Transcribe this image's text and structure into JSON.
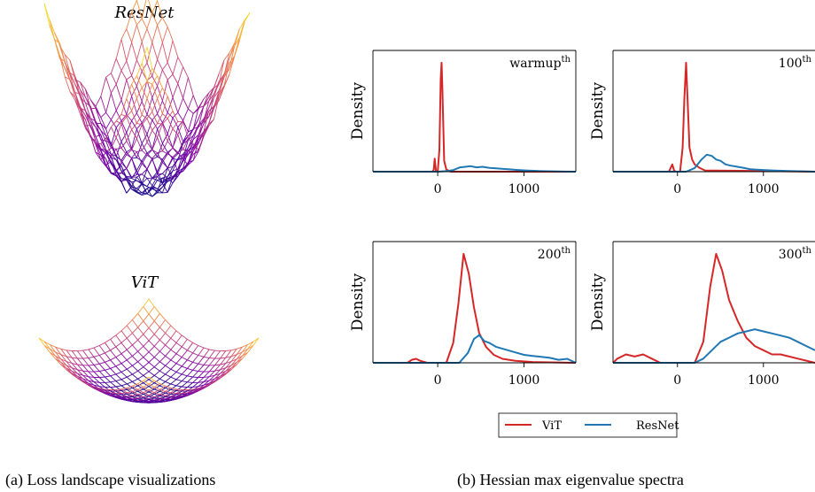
{
  "captions": {
    "a": "(a) Loss landscape visualizations",
    "b": "(b) Hessian max eigenvalue spectra"
  },
  "landscape_titles": [
    "ResNet",
    "ViT"
  ],
  "chart_data": [
    {
      "type": "line",
      "annotation": "warmup",
      "annotation_sup": "th",
      "ylabel": "Density",
      "xlim": [
        -750,
        1600
      ],
      "xticks": [
        "0",
        "1000"
      ],
      "series": [
        {
          "name": "ViT",
          "color": "#d62728",
          "x": [
            -750,
            -60,
            -45,
            -35,
            -20,
            0,
            20,
            35,
            45,
            55,
            75,
            100,
            150,
            1600
          ],
          "y": [
            0,
            0,
            0.02,
            0.12,
            0.01,
            0,
            0.2,
            0.85,
            1.0,
            0.75,
            0.1,
            0.02,
            0,
            0
          ]
        },
        {
          "name": "ResNet",
          "color": "#1f77b4",
          "x": [
            -750,
            0,
            100,
            180,
            260,
            320,
            380,
            450,
            520,
            600,
            680,
            760,
            850,
            950,
            1050,
            1200,
            1400,
            1600
          ],
          "y": [
            0,
            0,
            0.005,
            0.015,
            0.04,
            0.045,
            0.05,
            0.04,
            0.045,
            0.035,
            0.03,
            0.025,
            0.02,
            0.015,
            0.01,
            0.005,
            0.002,
            0
          ]
        }
      ]
    },
    {
      "type": "line",
      "annotation": "100",
      "annotation_sup": "th",
      "ylabel": "Density",
      "xlim": [
        -750,
        1600
      ],
      "xticks": [
        "0",
        "1000"
      ],
      "series": [
        {
          "name": "ViT",
          "color": "#d62728",
          "x": [
            -750,
            -100,
            -60,
            -40,
            -20,
            30,
            60,
            80,
            100,
            120,
            140,
            170,
            200,
            260,
            320,
            1000,
            1600
          ],
          "y": [
            0,
            0,
            0.06,
            0.01,
            0,
            0,
            0.2,
            0.6,
            0.9,
            0.55,
            0.2,
            0.1,
            0.06,
            0.03,
            0.01,
            0.005,
            0
          ]
        },
        {
          "name": "ResNet",
          "color": "#1f77b4",
          "x": [
            -750,
            100,
            200,
            280,
            340,
            400,
            450,
            500,
            560,
            620,
            700,
            780,
            850,
            950,
            1100,
            1300,
            1600
          ],
          "y": [
            0,
            0,
            0.03,
            0.1,
            0.14,
            0.13,
            0.1,
            0.09,
            0.06,
            0.05,
            0.04,
            0.03,
            0.02,
            0.015,
            0.01,
            0.005,
            0
          ]
        }
      ]
    },
    {
      "type": "line",
      "annotation": "200",
      "annotation_sup": "th",
      "ylabel": "Density",
      "xlim": [
        -750,
        1600
      ],
      "xticks": [
        "0",
        "1000"
      ],
      "series": [
        {
          "name": "ViT",
          "color": "#d62728",
          "x": [
            -750,
            -350,
            -300,
            -250,
            -200,
            -120,
            100,
            180,
            240,
            300,
            360,
            420,
            480,
            560,
            650,
            750,
            900,
            1100,
            1600
          ],
          "y": [
            0,
            0,
            0.015,
            0.02,
            0.01,
            0,
            0,
            0.1,
            0.3,
            0.55,
            0.45,
            0.28,
            0.15,
            0.08,
            0.04,
            0.02,
            0.01,
            0.004,
            0
          ]
        },
        {
          "name": "ResNet",
          "color": "#1f77b4",
          "x": [
            -750,
            250,
            350,
            420,
            480,
            540,
            600,
            680,
            760,
            840,
            920,
            1000,
            1100,
            1200,
            1300,
            1400,
            1500,
            1600
          ],
          "y": [
            0,
            0,
            0.05,
            0.12,
            0.14,
            0.11,
            0.1,
            0.08,
            0.07,
            0.06,
            0.05,
            0.04,
            0.035,
            0.03,
            0.025,
            0.015,
            0.02,
            0
          ]
        }
      ]
    },
    {
      "type": "line",
      "annotation": "300",
      "annotation_sup": "th",
      "ylabel": "Density",
      "xlim": [
        -750,
        1600
      ],
      "xticks": [
        "0",
        "1000"
      ],
      "series": [
        {
          "name": "ViT",
          "color": "#d62728",
          "x": [
            -750,
            -700,
            -600,
            -500,
            -400,
            -300,
            -200,
            200,
            300,
            380,
            450,
            520,
            600,
            700,
            800,
            900,
            1000,
            1100,
            1200,
            1300,
            1400,
            1500,
            1600
          ],
          "y": [
            0,
            0.01,
            0.02,
            0.015,
            0.02,
            0.01,
            0,
            0,
            0.05,
            0.18,
            0.26,
            0.22,
            0.15,
            0.1,
            0.06,
            0.04,
            0.03,
            0.02,
            0.02,
            0.015,
            0.01,
            0.005,
            0
          ]
        },
        {
          "name": "ResNet",
          "color": "#1f77b4",
          "x": [
            -750,
            200,
            300,
            400,
            500,
            600,
            700,
            800,
            900,
            1000,
            1100,
            1200,
            1300,
            1400,
            1500,
            1600
          ],
          "y": [
            0,
            0,
            0.01,
            0.03,
            0.05,
            0.06,
            0.07,
            0.075,
            0.08,
            0.075,
            0.07,
            0.065,
            0.06,
            0.05,
            0.04,
            0.03
          ]
        }
      ]
    }
  ],
  "legend": {
    "items": [
      {
        "label": "ViT",
        "color": "#d62728"
      },
      {
        "label": "ResNet",
        "color": "#1f77b4"
      }
    ]
  }
}
